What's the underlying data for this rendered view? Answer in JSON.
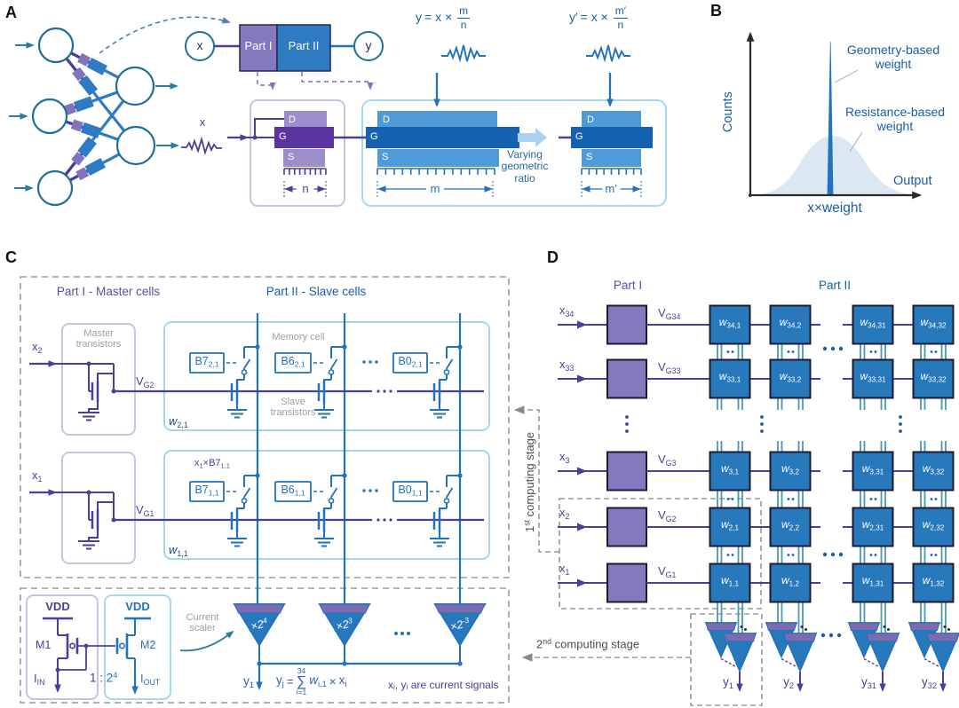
{
  "panel_labels": {
    "a": "A",
    "b": "B",
    "c": "C",
    "d": "D"
  },
  "colors": {
    "purple_wire": "#4B3E98",
    "purple_box": "#8678BE",
    "blue_box": "#2E7BC1",
    "blue_wire": "#2272BC",
    "blue_dark": "#1563B0",
    "blue_text": "#1A5DA8",
    "teal": "#2C7C9E",
    "scaler_band": "#7C6BB0",
    "gauss_fill": "#DCE7F4"
  },
  "a": {
    "node_x": "x",
    "node_y": "y",
    "part1": "Part I",
    "part2": "Part II",
    "eq1": {
      "lhs": "y",
      "mid": "= x ×",
      "num": "m",
      "den": "n"
    },
    "eq2": {
      "lhs": "y′",
      "mid": "= x ×",
      "num": "m′",
      "den": "n"
    },
    "input_label": "x",
    "t1": {
      "d": "D",
      "g": "G",
      "s": "S",
      "dim": "n"
    },
    "t2": {
      "d": "D",
      "g": "G",
      "s": "S",
      "dim": "m"
    },
    "t3": {
      "d": "D",
      "g": "G",
      "s": "S",
      "dim": "m′"
    },
    "varying": [
      "Varying",
      "geometric",
      "ratio"
    ]
  },
  "b": {
    "ylabel": "Counts",
    "xlabel": "Output",
    "xtick": "x×weight",
    "legend_geometry": [
      "Geometry-based",
      "weight"
    ],
    "legend_resistance": [
      "Resistance-based",
      "weight"
    ]
  },
  "c": {
    "header_part1": "Part I - Master cells",
    "header_part2": "Part II - Slave cells",
    "master_label": [
      "Master",
      "transistors"
    ],
    "memory_label": "Memory cell",
    "slave_label": [
      "Slave",
      "transistors"
    ],
    "rows": [
      {
        "x": {
          "base": "x",
          "sub": "2"
        },
        "vg": {
          "base": "V",
          "sub": "G2"
        },
        "w": {
          "base": "w",
          "sub": "2,1"
        },
        "cells": [
          {
            "base": "B7",
            "sub": "2,1"
          },
          {
            "base": "B6",
            "sub": "2,1"
          },
          {
            "base": "B0",
            "sub": "2,1"
          }
        ]
      },
      {
        "x": {
          "base": "x",
          "sub": "1"
        },
        "vg": {
          "base": "V",
          "sub": "G1"
        },
        "w": {
          "base": "w",
          "sub": "1,1"
        },
        "cells": [
          {
            "base": "B7",
            "sub": "1,1"
          },
          {
            "base": "B6",
            "sub": "1,1"
          },
          {
            "base": "B0",
            "sub": "1,1"
          }
        ]
      }
    ],
    "annotation": {
      "p1": "x",
      "s1": "1",
      "p2": "×B7",
      "s2": "1,1"
    },
    "vdd_left": "VDD",
    "vdd_right": "VDD",
    "m1": "M1",
    "m2": "M2",
    "i_in": {
      "base": "I",
      "sub": "IN"
    },
    "i_out": {
      "base": "I",
      "sub": "OUT"
    },
    "ratio": {
      "a": "1 : ",
      "b": "2",
      "exp": "4"
    },
    "scaler_label": [
      "Current",
      "scaler"
    ],
    "scalers": [
      {
        "base": "×2",
        "exp": "4"
      },
      {
        "base": "×2",
        "exp": "3"
      },
      {
        "base": "×2",
        "exp": "-3"
      }
    ],
    "output": {
      "base": "y",
      "sub": "1"
    },
    "formula": {
      "lhs": "y",
      "lhs_sub": "j",
      "eq": "=",
      "sum_top": "34",
      "sum": "∑",
      "sum_bot": "i=1",
      "w": "w",
      "w_sub": "i,1",
      "times": "×",
      "x": "x",
      "x_sub": "i"
    },
    "note": "xᵢ, yᵢ are current signals",
    "stage1": {
      "num": "1",
      "ord": "st",
      "rest": " computing stage"
    },
    "stage2": {
      "num": "2",
      "ord": "nd",
      "rest": " computing stage"
    }
  },
  "d": {
    "header_part1": "Part I",
    "header_part2": "Part II",
    "x_prefix": "x",
    "vg_prefix": "V",
    "w_prefix": "w",
    "y_prefix": "y",
    "rows": [
      {
        "x": "34",
        "vg": "G34",
        "cells": [
          "34,1",
          "34,2",
          "34,31",
          "34,32"
        ]
      },
      {
        "x": "33",
        "vg": "G33",
        "cells": [
          "33,1",
          "33,2",
          "33,31",
          "33,32"
        ]
      },
      {
        "x": "3",
        "vg": "G3",
        "cells": [
          "3,1",
          "3,2",
          "3,31",
          "3,32"
        ]
      },
      {
        "x": "2",
        "vg": "G2",
        "cells": [
          "2,1",
          "2,2",
          "2,31",
          "2,32"
        ]
      },
      {
        "x": "1",
        "vg": "G1",
        "cells": [
          "1,1",
          "1,2",
          "1,31",
          "1,32"
        ]
      }
    ],
    "outputs": [
      "1",
      "2",
      "31",
      "32"
    ]
  }
}
